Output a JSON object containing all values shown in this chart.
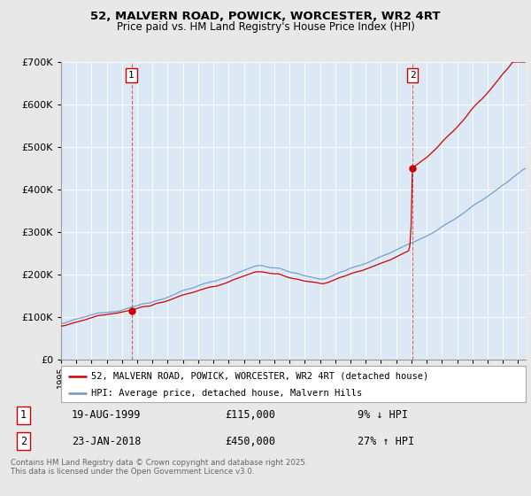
{
  "title_line1": "52, MALVERN ROAD, POWICK, WORCESTER, WR2 4RT",
  "title_line2": "Price paid vs. HM Land Registry's House Price Index (HPI)",
  "ylim": [
    0,
    700000
  ],
  "yticks": [
    0,
    100000,
    200000,
    300000,
    400000,
    500000,
    600000,
    700000
  ],
  "xlim_start": 1995.0,
  "xlim_end": 2025.5,
  "sale1_x": 1999.62,
  "sale1_y": 115000,
  "sale1_label": "1",
  "sale2_x": 2018.07,
  "sale2_y": 450000,
  "sale2_label": "2",
  "legend_entry1": "52, MALVERN ROAD, POWICK, WORCESTER, WR2 4RT (detached house)",
  "legend_entry2": "HPI: Average price, detached house, Malvern Hills",
  "annotation1_date": "19-AUG-1999",
  "annotation1_price": "£115,000",
  "annotation1_hpi": "9% ↓ HPI",
  "annotation2_date": "23-JAN-2018",
  "annotation2_price": "£450,000",
  "annotation2_hpi": "27% ↑ HPI",
  "footnote": "Contains HM Land Registry data © Crown copyright and database right 2025.\nThis data is licensed under the Open Government Licence v3.0.",
  "red_color": "#cc0000",
  "blue_color": "#6699cc",
  "plot_bg_color": "#dce9f5",
  "background_color": "#e8e8e8",
  "grid_color": "#ffffff"
}
